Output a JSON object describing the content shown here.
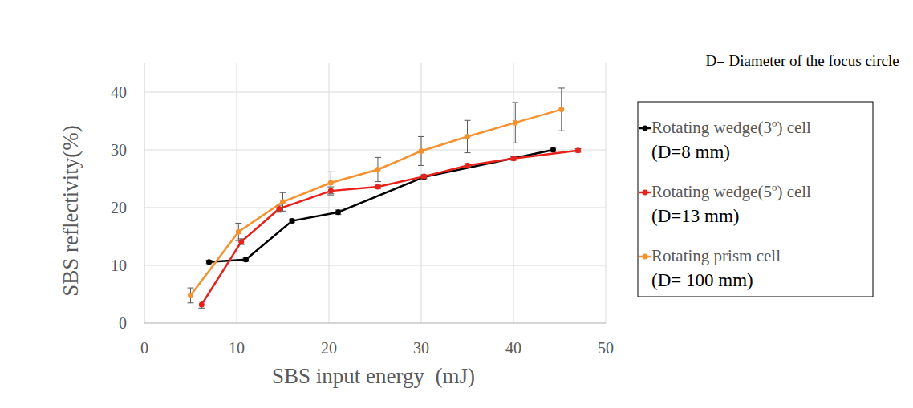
{
  "chart_data": {
    "type": "line",
    "x_label": "SBS input energy  (mJ)",
    "y_label": "SBS reflectivity(%)",
    "annotations": [
      "D= Diameter of the focus circle"
    ],
    "xlim": [
      0,
      50
    ],
    "xticks": [
      0,
      10,
      20,
      30,
      40,
      50
    ],
    "ylim": [
      0,
      45
    ],
    "yticks": [
      0,
      10,
      20,
      30,
      40
    ],
    "grid": true,
    "legend": "right",
    "marker": "circle",
    "series": [
      {
        "name": "Rotating wedge(3º) cell (D=8 mm)",
        "color": "#000000",
        "x": [
          7,
          11,
          16,
          21,
          30.3,
          44.3
        ],
        "values": [
          10.6,
          11,
          17.7,
          19.2,
          25.3,
          30
        ],
        "errors": [
          0.3,
          0.3,
          0.3,
          0.4,
          0.3,
          0.3
        ]
      },
      {
        "name": "Rotating wedge(5º) cell (D=13 mm)",
        "color": "#e8211b",
        "x": [
          6.2,
          10.5,
          14.6,
          20.2,
          25.3,
          30.3,
          35,
          40,
          47
        ],
        "values": [
          3.2,
          14.1,
          19.8,
          22.9,
          23.6,
          25.4,
          27.3,
          28.5,
          29.9
        ],
        "errors": [
          0.6,
          0.5,
          0.6,
          0.7,
          0.3,
          0.3,
          0.3,
          0.3,
          0.3
        ]
      },
      {
        "name": "Rotating prism cell (D= 100 mm)",
        "color": "#f5922f",
        "x": [
          5,
          10.2,
          15,
          20.2,
          25.3,
          30,
          35,
          40.2,
          45.2
        ],
        "values": [
          4.8,
          15.8,
          21,
          24.3,
          26.6,
          29.8,
          32.3,
          34.7,
          37
        ],
        "errors": [
          1.3,
          1.5,
          1.6,
          1.9,
          2.1,
          2.5,
          2.8,
          3.5,
          3.7
        ]
      }
    ]
  }
}
